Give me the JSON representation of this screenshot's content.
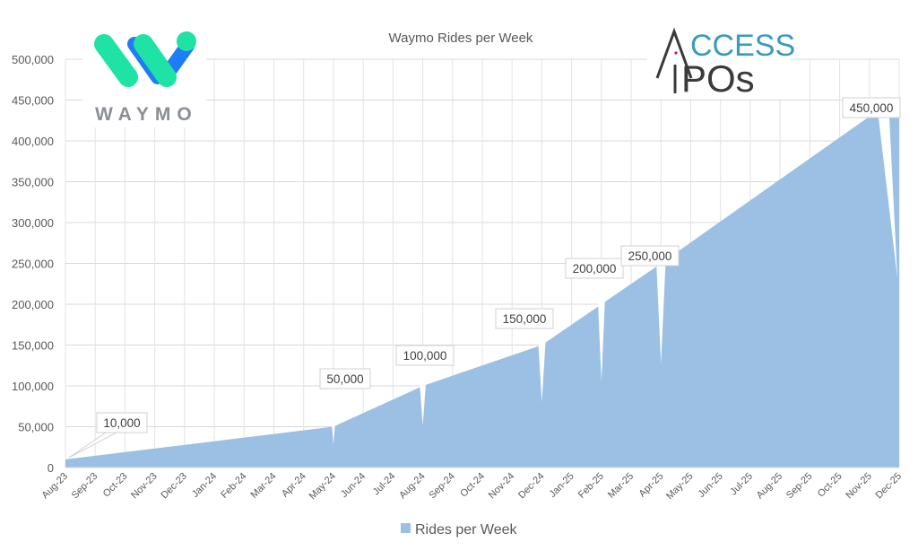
{
  "chart_data": {
    "type": "area",
    "title": "Waymo Rides per Week",
    "xlabel": "",
    "ylabel": "",
    "ylim": [
      0,
      500000
    ],
    "yticks": [
      0,
      50000,
      100000,
      150000,
      200000,
      250000,
      300000,
      350000,
      400000,
      450000,
      500000
    ],
    "ytick_labels": [
      "0",
      "50,000",
      "100,000",
      "150,000",
      "200,000",
      "250,000",
      "300,000",
      "350,000",
      "400,000",
      "450,000",
      "500,000"
    ],
    "grid": true,
    "legend_position": "bottom",
    "categories": [
      "Aug-23",
      "Sep-23",
      "Oct-23",
      "Nov-23",
      "Dec-23",
      "Jan-24",
      "Feb-24",
      "Mar-24",
      "Apr-24",
      "May-24",
      "Jun-24",
      "Jul-24",
      "Aug-24",
      "Sep-24",
      "Oct-24",
      "Nov-24",
      "Dec-24",
      "Jan-25",
      "Feb-25",
      "Mar-25",
      "Apr-25",
      "May-25",
      "Jun-25",
      "Jul-25",
      "Aug-25",
      "Sep-25",
      "Oct-25",
      "Nov-25",
      "Dec-25"
    ],
    "series": [
      {
        "name": "Rides per Week",
        "color": "#9bc0e3",
        "values": [
          10000,
          14400,
          18900,
          23300,
          27800,
          32200,
          36700,
          41100,
          45600,
          50000,
          66700,
          83300,
          100000,
          112500,
          125000,
          137500,
          150000,
          175000,
          200000,
          225000,
          250000,
          275700,
          301400,
          327100,
          352900,
          378600,
          404300,
          430000,
          450000
        ]
      }
    ],
    "annotations": [
      {
        "label": "10,000",
        "category": "Aug-23",
        "value": 10000
      },
      {
        "label": "50,000",
        "category": "May-24",
        "value": 50000
      },
      {
        "label": "100,000",
        "category": "Aug-24",
        "value": 100000
      },
      {
        "label": "150,000",
        "category": "Dec-24",
        "value": 150000
      },
      {
        "label": "200,000",
        "category": "Feb-25",
        "value": 200000
      },
      {
        "label": "250,000",
        "category": "Apr-25",
        "value": 250000
      },
      {
        "label": "450,000",
        "category": "Dec-25",
        "value": 450000
      }
    ]
  },
  "legend": {
    "label": "Rides per Week",
    "color": "#9bc0e3"
  },
  "logos": {
    "waymo": {
      "word": "WAYMO",
      "green": "#1ee3a4",
      "blue": "#1f7cf5"
    },
    "access_ipos": {
      "line1": "CCESS",
      "line2": "POs",
      "accent": "#3a9bbd",
      "dot": "#d11a3a"
    }
  }
}
